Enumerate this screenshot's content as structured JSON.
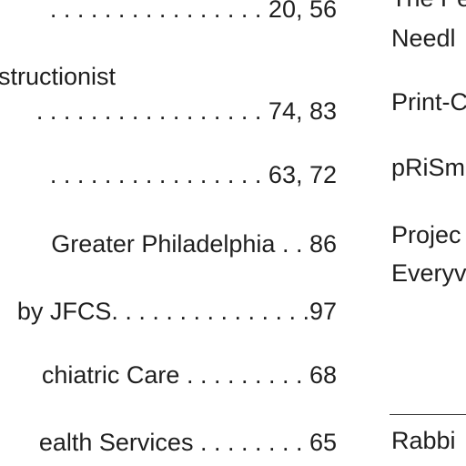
{
  "left_column": [
    {
      "text": ". . . . . . . . . . . . . . . . 20, 56"
    },
    {
      "text": "structionist"
    },
    {
      "text": ". . . . . . . . . . . . . . . . . 74, 83"
    },
    {
      "text": ". . . . . . . . . . . . . . . . 63, 72"
    },
    {
      "text": "Greater Philadelphia . .  86"
    },
    {
      "text": "by JFCS. . . . . . . . . . . . . . .97"
    },
    {
      "text": "chiatric Care . . . . . . . . .  68"
    },
    {
      "text": "ealth Services . . . . . . . .  65"
    }
  ],
  "right_column": [
    {
      "text": "The Pe"
    },
    {
      "text": "Needl"
    },
    {
      "text": "Print-C"
    },
    {
      "text": "pRiSm"
    },
    {
      "text": "Projec"
    },
    {
      "text": "Everyv"
    },
    {
      "text": "Rabbi"
    }
  ]
}
